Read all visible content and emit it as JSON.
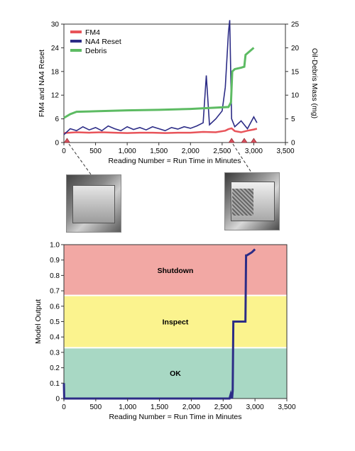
{
  "chart_data": [
    {
      "type": "line",
      "xlabel": "Reading Number = Run Time in Minutes",
      "ylabel_left": "FM4 and NA4 Reset",
      "ylabel_right": "Oil-Debris Mass (mg)",
      "xlim": [
        0,
        3500
      ],
      "ylim_left": [
        0,
        30
      ],
      "ylim_right": [
        0,
        25
      ],
      "xticks": [
        "0",
        "500",
        "1,000",
        "1,500",
        "2,000",
        "2,500",
        "3,000",
        "3,500"
      ],
      "yticks_left": [
        "0",
        "6",
        "12",
        "18",
        "24",
        "30"
      ],
      "yticks_right": [
        "0",
        "5",
        "10",
        "15",
        "20",
        "25"
      ],
      "legend": "top-left",
      "event_markers_x": [
        50,
        2650,
        2850,
        3000
      ],
      "series": [
        {
          "name": "FM4",
          "color": "#e8545a",
          "axis": "left",
          "x": [
            0,
            200,
            400,
            600,
            800,
            1000,
            1200,
            1400,
            1600,
            1800,
            2000,
            2200,
            2400,
            2550,
            2600,
            2650,
            2700,
            2800,
            2900,
            3000,
            3050
          ],
          "y": [
            2.4,
            2.6,
            2.5,
            2.6,
            2.5,
            2.4,
            2.5,
            2.5,
            2.4,
            2.5,
            2.5,
            2.7,
            2.6,
            3.0,
            3.4,
            3.6,
            2.9,
            2.6,
            3.0,
            3.3,
            3.5
          ]
        },
        {
          "name": "NA4 Reset",
          "color": "#2c2c86",
          "axis": "left",
          "x": [
            0,
            100,
            200,
            300,
            400,
            500,
            600,
            700,
            800,
            900,
            1000,
            1100,
            1200,
            1300,
            1400,
            1500,
            1600,
            1700,
            1800,
            1900,
            2000,
            2100,
            2200,
            2250,
            2300,
            2400,
            2500,
            2550,
            2600,
            2620,
            2650,
            2700,
            2800,
            2900,
            3000,
            3050
          ],
          "y": [
            2.0,
            3.5,
            3.0,
            4.0,
            3.2,
            3.8,
            3.0,
            4.2,
            3.5,
            3.0,
            4.0,
            3.3,
            3.8,
            3.2,
            4.0,
            3.5,
            3.0,
            3.8,
            3.4,
            4.0,
            3.6,
            4.2,
            5.0,
            17.0,
            4.5,
            6.0,
            8.0,
            14.0,
            28.0,
            31.0,
            6.0,
            4.0,
            5.5,
            3.5,
            6.5,
            5.0
          ]
        },
        {
          "name": "Debris",
          "color": "#5dbb63",
          "axis": "right",
          "x": [
            0,
            100,
            200,
            500,
            1000,
            1500,
            2000,
            2300,
            2600,
            2640,
            2660,
            2700,
            2800,
            2850,
            2870,
            3000
          ],
          "y": [
            5.2,
            6.0,
            6.5,
            6.6,
            6.8,
            6.9,
            7.1,
            7.3,
            7.5,
            8.5,
            15.0,
            15.5,
            15.8,
            16.0,
            18.5,
            20.0
          ]
        }
      ]
    },
    {
      "type": "line",
      "xlabel": "Reading Number = Run Time in Minutes",
      "ylabel": "Model Output",
      "xlim": [
        0,
        3500
      ],
      "ylim": [
        0,
        1.0
      ],
      "xticks": [
        "0",
        "500",
        "1,000",
        "1,500",
        "2,000",
        "2,500",
        "3,000",
        "3,500"
      ],
      "yticks": [
        "0",
        "0.1",
        "0.2",
        "0.3",
        "0.4",
        "0.5",
        "0.6",
        "0.7",
        "0.8",
        "0.9",
        "1.0"
      ],
      "zones": [
        {
          "label": "OK",
          "from": 0,
          "to": 0.33,
          "color": "#a8d8c4"
        },
        {
          "label": "Inspect",
          "from": 0.33,
          "to": 0.67,
          "color": "#fbf38e"
        },
        {
          "label": "Shutdown",
          "from": 0.67,
          "to": 1.0,
          "color": "#f2a8a4"
        }
      ],
      "series": [
        {
          "name": "",
          "color": "#2c2c86",
          "x": [
            0,
            5,
            10,
            2600,
            2620,
            2640,
            2650,
            2660,
            2680,
            2850,
            2860,
            2870,
            2950,
            3000
          ],
          "y": [
            0.1,
            0.0,
            0.0,
            0.0,
            0.03,
            0.0,
            0.05,
            0.5,
            0.5,
            0.5,
            0.93,
            0.93,
            0.95,
            0.97
          ]
        }
      ]
    }
  ]
}
